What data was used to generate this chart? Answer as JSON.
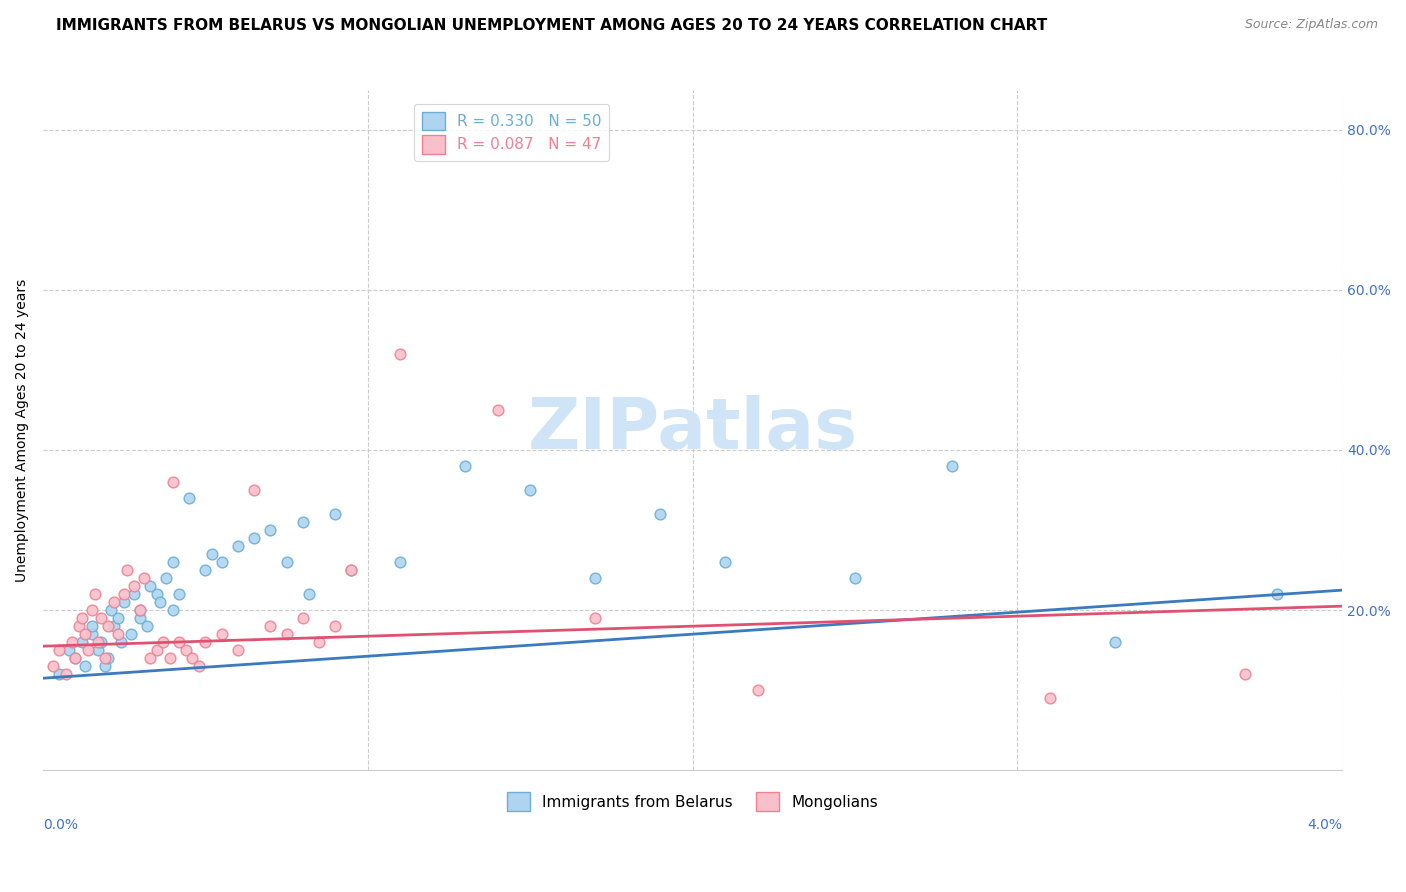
{
  "title": "IMMIGRANTS FROM BELARUS VS MONGOLIAN UNEMPLOYMENT AMONG AGES 20 TO 24 YEARS CORRELATION CHART",
  "source": "Source: ZipAtlas.com",
  "ylabel": "Unemployment Among Ages 20 to 24 years",
  "watermark": "ZIPatlas",
  "legend_items": [
    {
      "label": "R = 0.330   N = 50",
      "color": "#6baed6"
    },
    {
      "label": "R = 0.087   N = 47",
      "color": "#f4a0b0"
    }
  ],
  "blue_scatter_x": [
    0.0005,
    0.0008,
    0.001,
    0.0012,
    0.0013,
    0.0015,
    0.0015,
    0.0017,
    0.0018,
    0.0019,
    0.002,
    0.0021,
    0.0022,
    0.0023,
    0.0024,
    0.0025,
    0.0027,
    0.0028,
    0.003,
    0.003,
    0.0032,
    0.0033,
    0.0035,
    0.0036,
    0.0038,
    0.004,
    0.004,
    0.0042,
    0.0045,
    0.005,
    0.0052,
    0.0055,
    0.006,
    0.0065,
    0.007,
    0.0075,
    0.008,
    0.0082,
    0.009,
    0.0095,
    0.011,
    0.013,
    0.015,
    0.017,
    0.019,
    0.021,
    0.025,
    0.028,
    0.033,
    0.038
  ],
  "blue_scatter_y": [
    0.12,
    0.15,
    0.14,
    0.16,
    0.13,
    0.17,
    0.18,
    0.15,
    0.16,
    0.13,
    0.14,
    0.2,
    0.18,
    0.19,
    0.16,
    0.21,
    0.17,
    0.22,
    0.19,
    0.2,
    0.18,
    0.23,
    0.22,
    0.21,
    0.24,
    0.2,
    0.26,
    0.22,
    0.34,
    0.25,
    0.27,
    0.26,
    0.28,
    0.29,
    0.3,
    0.26,
    0.31,
    0.22,
    0.32,
    0.25,
    0.26,
    0.38,
    0.35,
    0.24,
    0.32,
    0.26,
    0.24,
    0.38,
    0.16,
    0.22
  ],
  "pink_scatter_x": [
    0.0003,
    0.0005,
    0.0007,
    0.0009,
    0.001,
    0.0011,
    0.0012,
    0.0013,
    0.0014,
    0.0015,
    0.0016,
    0.0017,
    0.0018,
    0.0019,
    0.002,
    0.0022,
    0.0023,
    0.0025,
    0.0026,
    0.0028,
    0.003,
    0.0031,
    0.0033,
    0.0035,
    0.0037,
    0.0039,
    0.004,
    0.0042,
    0.0044,
    0.0046,
    0.0048,
    0.005,
    0.0055,
    0.006,
    0.0065,
    0.007,
    0.0075,
    0.008,
    0.0085,
    0.009,
    0.0095,
    0.011,
    0.014,
    0.017,
    0.022,
    0.031,
    0.037
  ],
  "pink_scatter_y": [
    0.13,
    0.15,
    0.12,
    0.16,
    0.14,
    0.18,
    0.19,
    0.17,
    0.15,
    0.2,
    0.22,
    0.16,
    0.19,
    0.14,
    0.18,
    0.21,
    0.17,
    0.22,
    0.25,
    0.23,
    0.2,
    0.24,
    0.14,
    0.15,
    0.16,
    0.14,
    0.36,
    0.16,
    0.15,
    0.14,
    0.13,
    0.16,
    0.17,
    0.15,
    0.35,
    0.18,
    0.17,
    0.19,
    0.16,
    0.18,
    0.25,
    0.52,
    0.45,
    0.19,
    0.1,
    0.09,
    0.12
  ],
  "blue_line_x": [
    0.0,
    0.04
  ],
  "blue_line_y": [
    0.115,
    0.225
  ],
  "pink_line_x": [
    0.0,
    0.04
  ],
  "pink_line_y": [
    0.155,
    0.205
  ],
  "xlim": [
    0.0,
    0.04
  ],
  "ylim": [
    0.0,
    0.85
  ],
  "scatter_size": 60,
  "blue_color": "#6baed6",
  "blue_fill": "#aed4f0",
  "pink_color": "#f08090",
  "pink_fill": "#f8c0cb",
  "line_blue": "#3a7abf",
  "line_pink": "#e05070",
  "title_fontsize": 11,
  "source_fontsize": 9,
  "axis_label_fontsize": 10,
  "tick_fontsize": 10,
  "legend_fontsize": 11,
  "right_axis_color": "#4472c4",
  "bottom_axis_color": "#4472c4",
  "watermark_color": "#d0e4f7",
  "watermark_fontsize": 52
}
